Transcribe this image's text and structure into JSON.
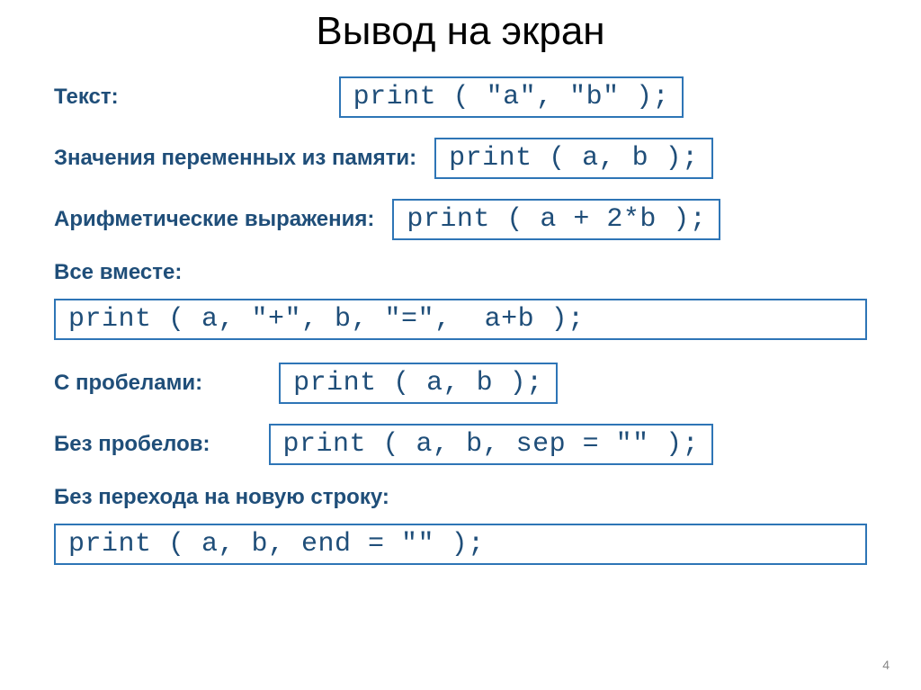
{
  "title": "Вывод на экран",
  "rows": {
    "text": {
      "label": "Текст:",
      "code": "print ( \"a\", \"b\" );"
    },
    "vars": {
      "label": "Значения переменных из памяти:",
      "code": "print ( a, b );"
    },
    "arith": {
      "label": "Арифметические выражения:",
      "code": "print ( a + 2*b );"
    },
    "all": {
      "label": "Все вместе:",
      "code": "print ( a, \"+\", b, \"=\",  a+b );"
    },
    "spaces": {
      "label": "С пробелами:",
      "code": "print ( a, b );"
    },
    "nospaces": {
      "label": "Без пробелов:",
      "code": "print ( a, b, sep = \"\" );"
    },
    "nonewline": {
      "label": "Без перехода на новую строку:",
      "code": "print ( a, b, end = \"\" );"
    }
  },
  "page": "4",
  "colors": {
    "label": "#1f4e79",
    "border": "#2e75b6",
    "code_text": "#1f4e79",
    "title": "#000000",
    "background": "#ffffff"
  },
  "fonts": {
    "title_size": 44,
    "label_size": 24,
    "code_size": 30,
    "code_family": "Courier New"
  }
}
